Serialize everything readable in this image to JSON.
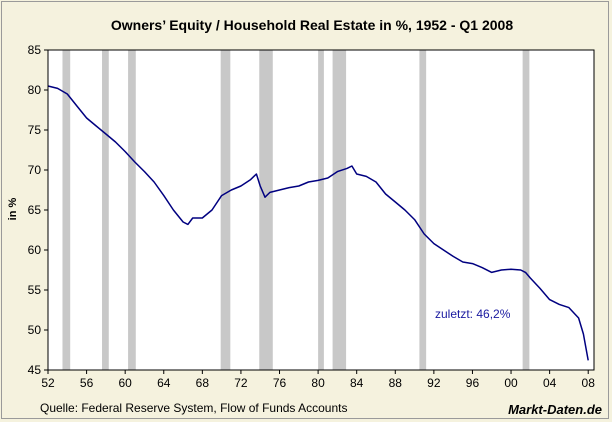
{
  "chart_data": {
    "type": "line",
    "title": "Owners’ Equity /  Household Real Estate in %, 1952 - Q1 2008",
    "ylabel": "in %",
    "xlim": [
      1952,
      2008.6
    ],
    "ylim": [
      45,
      85
    ],
    "y_ticks": [
      45,
      50,
      55,
      60,
      65,
      70,
      75,
      80,
      85
    ],
    "x_ticks": [
      1952,
      1956,
      1960,
      1964,
      1968,
      1972,
      1976,
      1980,
      1984,
      1988,
      1992,
      1996,
      2000,
      2004,
      2008
    ],
    "x_tick_labels": [
      "52",
      "56",
      "60",
      "64",
      "68",
      "72",
      "76",
      "80",
      "84",
      "88",
      "92",
      "96",
      "00",
      "04",
      "08"
    ],
    "grid": false,
    "line_color": "#000080",
    "recession_color": "#c8c8c8",
    "recessions": [
      [
        1953.5,
        1954.3
      ],
      [
        1957.6,
        1958.3
      ],
      [
        1960.3,
        1961.1
      ],
      [
        1969.9,
        1970.9
      ],
      [
        1973.9,
        1975.3
      ],
      [
        1980.0,
        1980.6
      ],
      [
        1981.5,
        1982.9
      ],
      [
        1990.5,
        1991.2
      ],
      [
        2001.2,
        2001.9
      ]
    ],
    "series": [
      {
        "x": [
          1952.0,
          1953.0,
          1954.0,
          1955.0,
          1956.0,
          1957.0,
          1958.0,
          1959.0,
          1960.0,
          1961.0,
          1962.0,
          1963.0,
          1964.0,
          1965.0,
          1966.0,
          1966.5,
          1967.0,
          1968.0,
          1969.0,
          1970.0,
          1971.0,
          1972.0,
          1973.0,
          1973.6,
          1974.0,
          1974.5,
          1975.0,
          1976.0,
          1977.0,
          1978.0,
          1979.0,
          1980.0,
          1981.0,
          1982.0,
          1983.0,
          1983.5,
          1984.0,
          1985.0,
          1986.0,
          1987.0,
          1988.0,
          1989.0,
          1990.0,
          1991.0,
          1992.0,
          1993.0,
          1994.0,
          1995.0,
          1996.0,
          1997.0,
          1998.0,
          1999.0,
          2000.0,
          2001.0,
          2001.5,
          2002.0,
          2003.0,
          2004.0,
          2005.0,
          2006.0,
          2007.0,
          2007.5,
          2008.0
        ],
        "values": [
          80.5,
          80.2,
          79.5,
          78.0,
          76.5,
          75.5,
          74.5,
          73.5,
          72.3,
          71.0,
          69.8,
          68.5,
          66.8,
          65.0,
          63.5,
          63.2,
          64.0,
          64.0,
          65.0,
          66.8,
          67.5,
          68.0,
          68.8,
          69.5,
          68.0,
          66.6,
          67.2,
          67.5,
          67.8,
          68.0,
          68.5,
          68.7,
          69.0,
          69.8,
          70.2,
          70.5,
          69.5,
          69.2,
          68.5,
          67.0,
          66.0,
          65.0,
          63.8,
          62.0,
          60.8,
          60.0,
          59.2,
          58.5,
          58.3,
          57.8,
          57.2,
          57.5,
          57.6,
          57.5,
          57.2,
          56.5,
          55.2,
          53.8,
          53.2,
          52.8,
          51.5,
          49.5,
          46.2
        ]
      }
    ],
    "annotation": "zuletzt: 46,2%",
    "source": "Quelle: Federal Reserve System, Flow of Funds Accounts",
    "brand": "Markt-Daten.de"
  }
}
